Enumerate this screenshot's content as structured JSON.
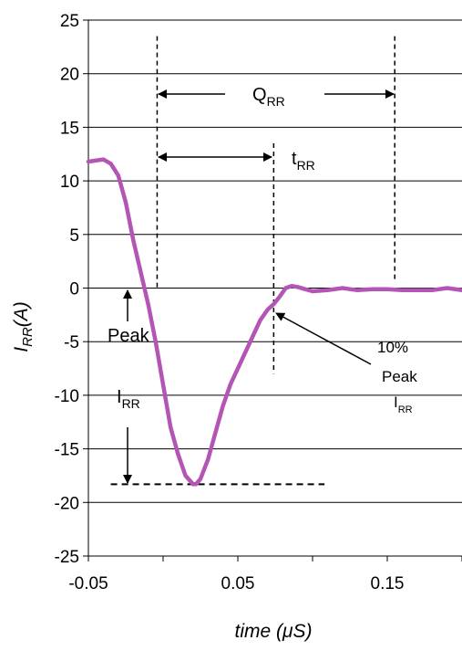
{
  "chart_data": {
    "type": "line",
    "title": "",
    "xlabel": "time (μS)",
    "ylabel_main": "I",
    "ylabel_sub": "RR",
    "ylabel_rest": "(A)",
    "xlim": [
      -0.05,
      0.2
    ],
    "ylim": [
      -25,
      25
    ],
    "x_ticks": [
      -0.05,
      0.05,
      0.15
    ],
    "x_tick_labels": [
      "-0.05",
      "0.05",
      "0.15"
    ],
    "y_ticks": [
      25,
      20,
      15,
      10,
      5,
      0,
      -5,
      -10,
      -15,
      -20,
      -25
    ],
    "y_tick_labels": [
      "25",
      "20",
      "15",
      "10",
      "5",
      "0",
      "-5",
      "-10",
      "-15",
      "-20",
      "-25"
    ],
    "grid": "horizontal",
    "series": [
      {
        "color": "#b455b5",
        "x": [
          -0.05,
          -0.045,
          -0.04,
          -0.035,
          -0.03,
          -0.025,
          -0.02,
          -0.015,
          -0.01,
          -0.005,
          0.0,
          0.005,
          0.01,
          0.015,
          0.02,
          0.022,
          0.025,
          0.03,
          0.035,
          0.04,
          0.045,
          0.05,
          0.055,
          0.06,
          0.065,
          0.07,
          0.074,
          0.078,
          0.082,
          0.086,
          0.09,
          0.095,
          0.1,
          0.11,
          0.12,
          0.13,
          0.14,
          0.15,
          0.16,
          0.17,
          0.18,
          0.19,
          0.2
        ],
        "y": [
          11.8,
          11.9,
          12.0,
          11.6,
          10.5,
          8.0,
          4.5,
          1.5,
          -1.5,
          -5.0,
          -9.0,
          -13.0,
          -15.5,
          -17.5,
          -18.3,
          -18.3,
          -17.8,
          -16.0,
          -13.5,
          -11.0,
          -9.0,
          -7.5,
          -6.0,
          -4.5,
          -3.0,
          -2.0,
          -1.5,
          -0.8,
          0.0,
          0.2,
          0.1,
          -0.1,
          -0.3,
          -0.2,
          0.0,
          -0.2,
          -0.1,
          -0.1,
          -0.2,
          -0.2,
          -0.2,
          0.0,
          -0.2
        ]
      }
    ],
    "reference_lines": [
      {
        "orientation": "vertical",
        "x": -0.004,
        "y_top": 23.5,
        "y_bottom": 0
      },
      {
        "orientation": "vertical",
        "x": 0.074,
        "y_top": 13.5,
        "y_bottom": -8
      },
      {
        "orientation": "vertical",
        "x": 0.155,
        "y_top": 23.5,
        "y_bottom": 0.5
      },
      {
        "orientation": "horizontal",
        "y": -18.3,
        "x_start": -0.035,
        "x_end": 0.108
      }
    ],
    "annotations": {
      "qrr_main": "Q",
      "qrr_sub": "RR",
      "trr_main": "t",
      "trr_sub": "RR",
      "peak_word": "Peak",
      "peak_i": "I",
      "peak_sub": "RR",
      "pct_line1": "10%",
      "pct_line2": "Peak",
      "pct_i": "I",
      "pct_sub": "RR"
    }
  }
}
